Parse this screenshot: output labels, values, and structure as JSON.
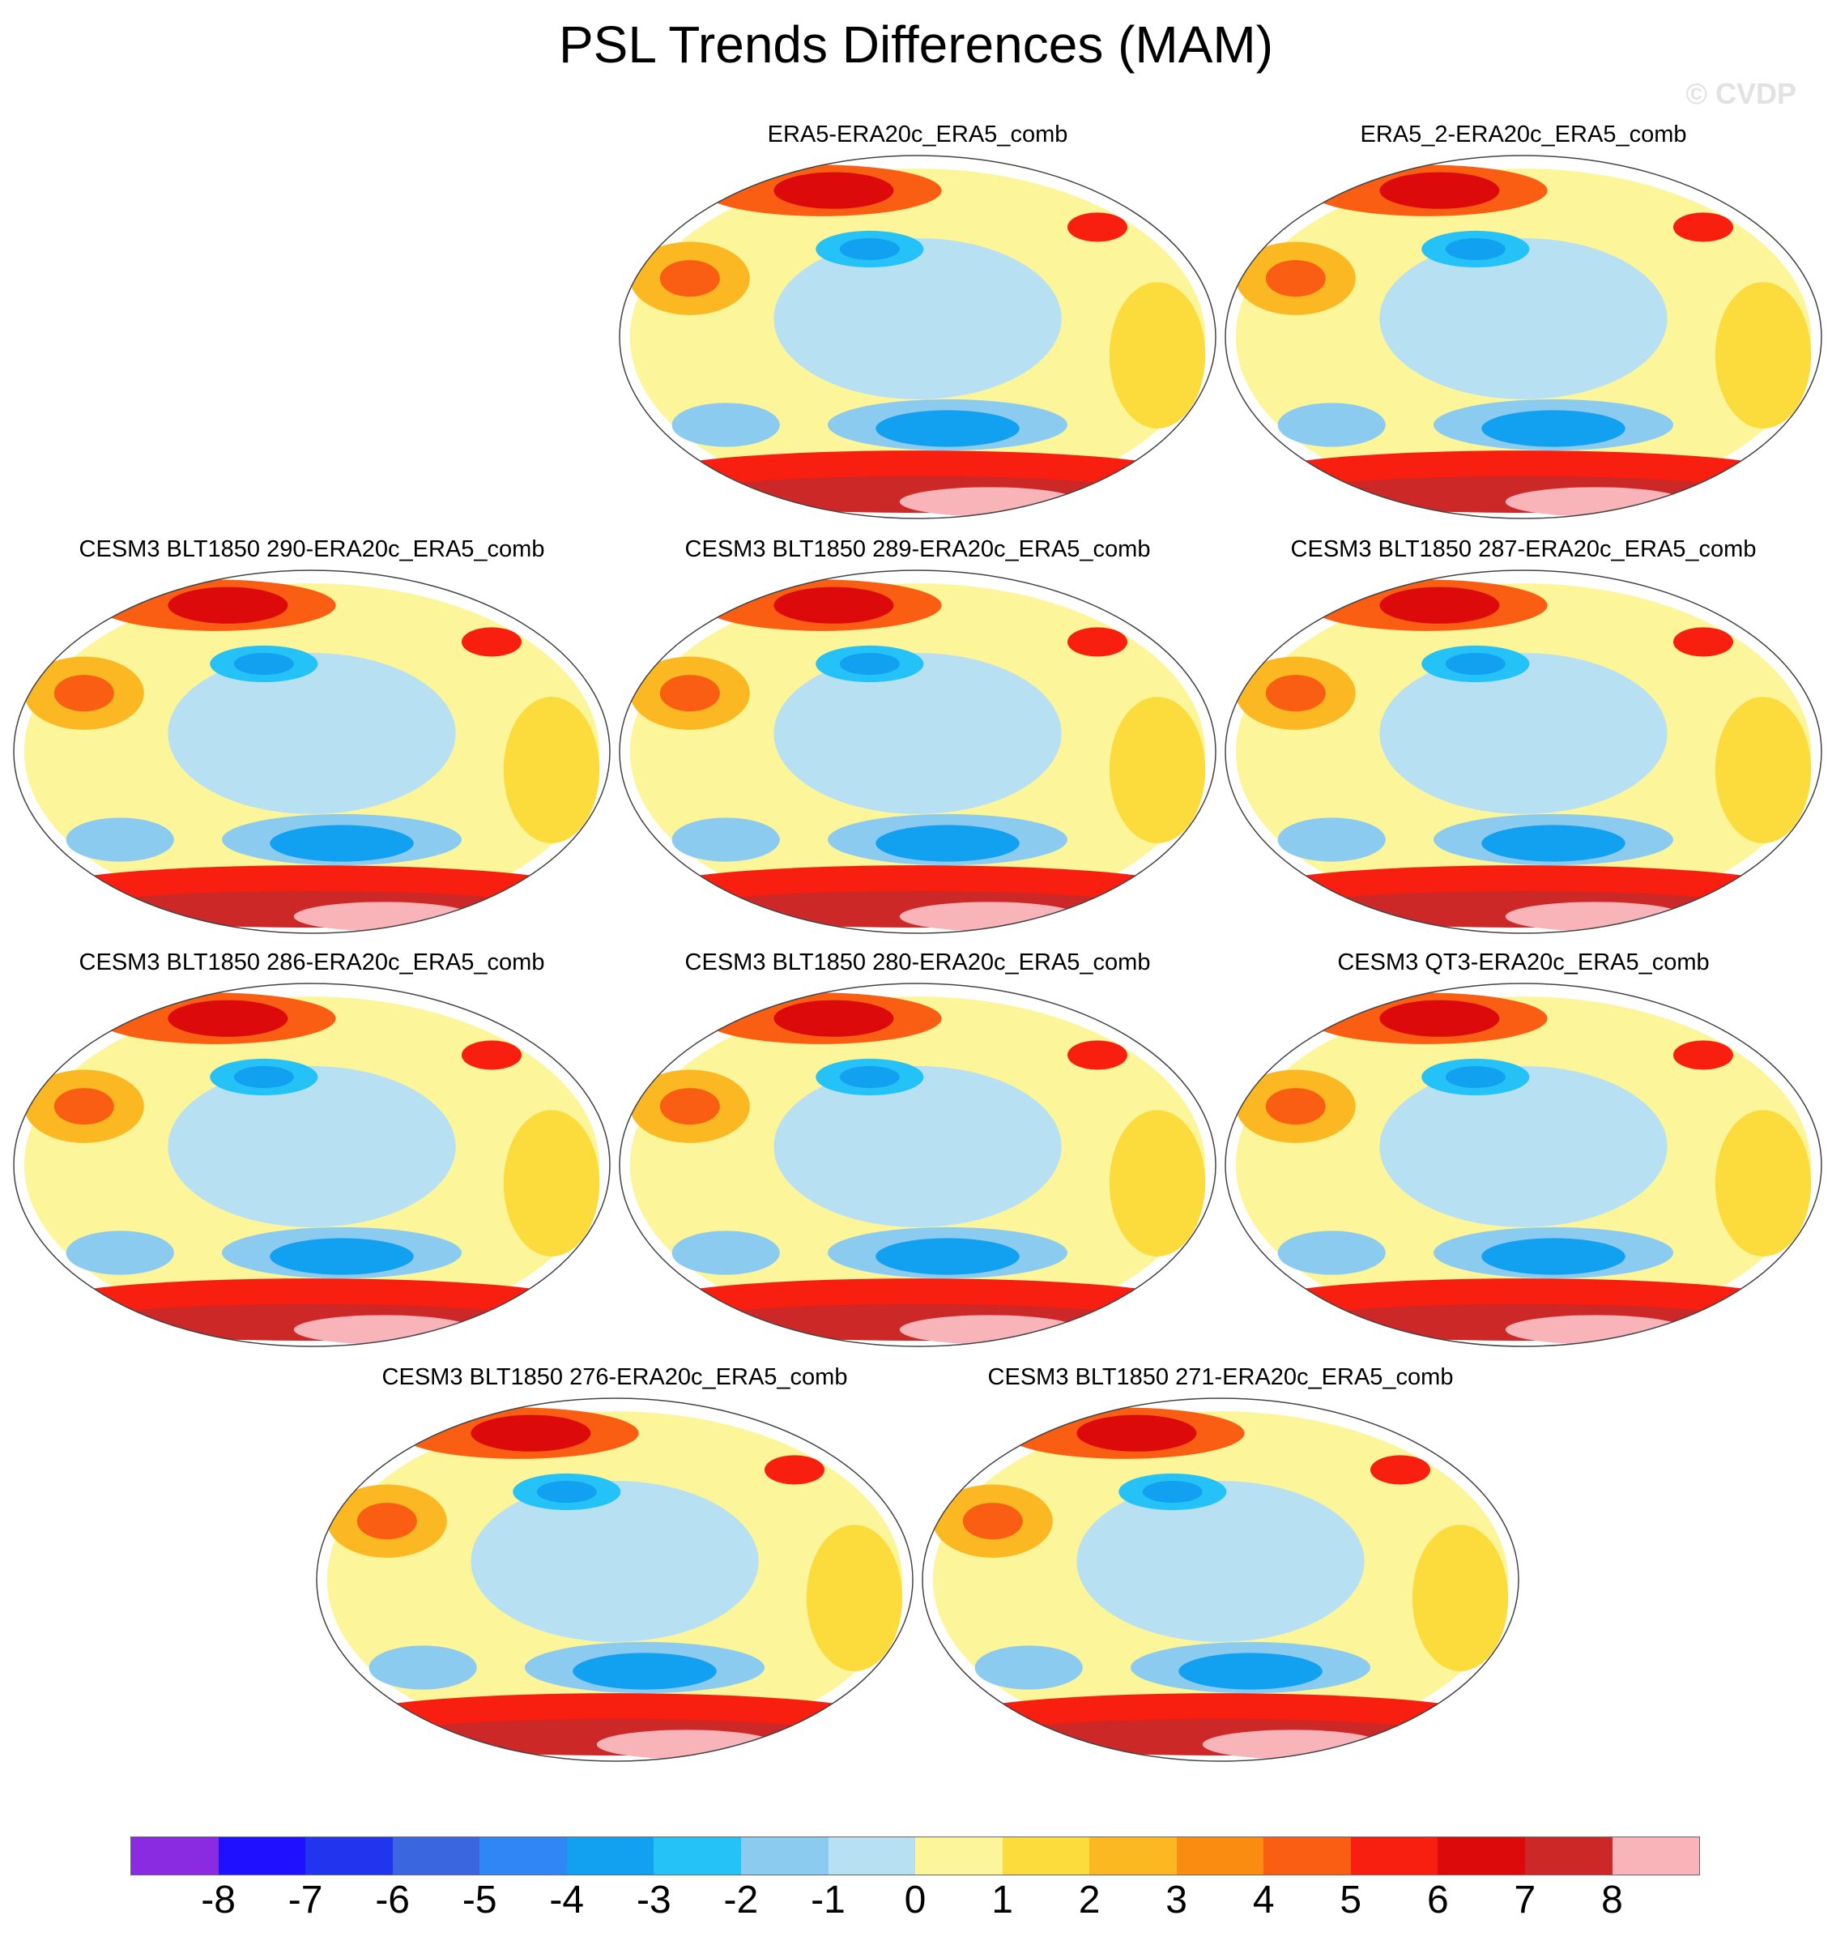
{
  "title": "PSL Trends Differences (MAM)",
  "watermark": "© CVDP",
  "chart_data": {
    "type": "heatmap",
    "title": "PSL Trends Differences (MAM)",
    "projection": "Robinson (global map, Pacific-centered)",
    "panels": [
      {
        "name": "ERA5-ERA20c_ERA5_comb"
      },
      {
        "name": "ERA5_2-ERA20c_ERA5_comb"
      },
      {
        "name": "CESM3 BLT1850 290-ERA20c_ERA5_comb"
      },
      {
        "name": "CESM3 BLT1850 289-ERA20c_ERA5_comb"
      },
      {
        "name": "CESM3 BLT1850 287-ERA20c_ERA5_comb"
      },
      {
        "name": "CESM3 BLT1850 286-ERA20c_ERA5_comb"
      },
      {
        "name": "CESM3 BLT1850 280-ERA20c_ERA5_comb"
      },
      {
        "name": "CESM3 QT3-ERA20c_ERA5_comb"
      },
      {
        "name": "CESM3 BLT1850 276-ERA20c_ERA5_comb"
      },
      {
        "name": "CESM3 BLT1850 271-ERA20c_ERA5_comb"
      }
    ],
    "colorbar": {
      "levels": [
        "-8",
        "-7",
        "-6",
        "-5",
        "-4",
        "-3",
        "-2",
        "-1",
        "0",
        "1",
        "2",
        "3",
        "4",
        "5",
        "6",
        "7",
        "8"
      ],
      "colors": [
        "#8a2be2",
        "#1f10ff",
        "#2235ee",
        "#3a66e0",
        "#2f86f4",
        "#12a0f0",
        "#25c2f8",
        "#8ccbf0",
        "#b7e0f2",
        "#fcf59a",
        "#fcdb3c",
        "#fbb823",
        "#fb8c12",
        "#fa5e12",
        "#f81e10",
        "#dc0a0a",
        "#cc2828",
        "#f8b4b8"
      ]
    }
  }
}
